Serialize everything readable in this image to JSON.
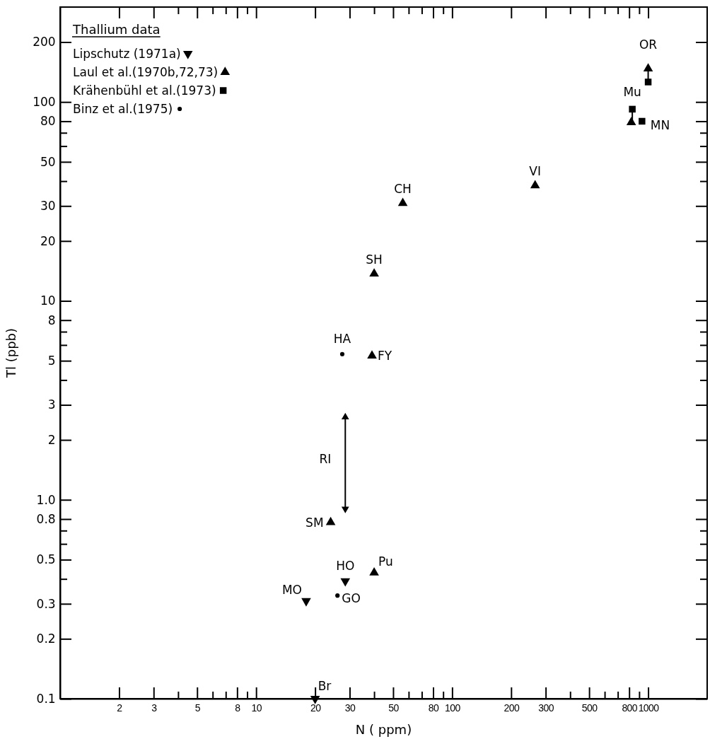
{
  "chart_data": {
    "type": "scatter",
    "xlabel": "N ( ppm)",
    "ylabel": "Tl (ppb)",
    "legend_title": "Thallium data",
    "legend": "top left",
    "log": "xy",
    "grid": false,
    "xlim": [
      1,
      2000
    ],
    "ylim": [
      0.1,
      300
    ],
    "xticks": [
      2,
      3,
      {
        "value": 4,
        "label": null
      },
      5,
      {
        "value": 6,
        "label": null
      },
      {
        "value": 7,
        "label": null
      },
      8,
      {
        "value": 9,
        "label": null
      },
      10,
      20,
      30,
      {
        "value": 40,
        "label": null
      },
      50,
      {
        "value": 60,
        "label": null
      },
      {
        "value": 70,
        "label": null
      },
      80,
      {
        "value": 90,
        "label": null
      },
      100,
      200,
      300,
      {
        "value": 400,
        "label": null
      },
      500,
      {
        "value": 600,
        "label": null
      },
      {
        "value": 700,
        "label": null
      },
      800,
      {
        "value": 900,
        "label": null
      },
      1000
    ],
    "yticks": [
      0.1,
      0.2,
      0.3,
      {
        "value": 0.4,
        "label": null
      },
      0.5,
      {
        "value": 0.6,
        "label": null
      },
      {
        "value": 0.7,
        "label": null
      },
      0.8,
      {
        "value": 1,
        "label": "1.0"
      },
      2,
      3,
      {
        "value": 4,
        "label": null
      },
      5,
      {
        "value": 6,
        "label": null
      },
      {
        "value": 7,
        "label": null
      },
      8,
      10,
      20,
      30,
      {
        "value": 40,
        "label": null
      },
      50,
      {
        "value": 60,
        "label": null
      },
      {
        "value": 70,
        "label": null
      },
      80,
      100,
      200
    ],
    "series": [
      {
        "name": "Lipschutz (1971a)",
        "color": "#000000",
        "marker": "triangle-down",
        "x": [
          28.5,
          18,
          20
        ],
        "values": [
          0.39,
          0.31,
          0.1
        ]
      },
      {
        "name": "Laul et al.(1970b,72,73)",
        "color": "#000000",
        "marker": "triangle",
        "x": [
          1000,
          820,
          265,
          56,
          40,
          39,
          24,
          40
        ],
        "values": [
          147,
          79,
          38,
          31,
          13.7,
          5.3,
          0.77,
          0.43
        ]
      },
      {
        "name": "Krähenbühl et al.(1973)",
        "color": "#000000",
        "marker": "square",
        "x": [
          1000,
          830,
          930
        ],
        "values": [
          126,
          92,
          80
        ]
      },
      {
        "name": "Binz et al.(1975)",
        "color": "#000000",
        "marker": "circle",
        "x": [
          27.5,
          26
        ],
        "values": [
          5.4,
          0.33
        ]
      },
      {
        "type": "line",
        "color": "#000000",
        "line_style": "solid",
        "marker": "triangle",
        "x": [
          28.5,
          28.5
        ],
        "values": [
          0.9,
          2.6
        ]
      },
      {
        "type": "line",
        "color": "#000000",
        "line_style": "solid",
        "marker": "none",
        "x": [
          830,
          830
        ],
        "values": [
          92,
          79
        ]
      },
      {
        "type": "line",
        "color": "#000000",
        "line_style": "solid",
        "marker": "none",
        "x": [
          1000,
          1000
        ],
        "values": [
          126,
          147
        ]
      }
    ],
    "annotations": [
      {
        "text": "OR",
        "x": 1000,
        "y": 147
      },
      {
        "text": "Mu",
        "x": 830,
        "y": 92
      },
      {
        "text": "MN",
        "x": 930,
        "y": 80
      },
      {
        "text": "VI",
        "x": 265,
        "y": 38
      },
      {
        "text": "CH",
        "x": 56,
        "y": 31
      },
      {
        "text": "SH",
        "x": 40,
        "y": 13.7
      },
      {
        "text": "HA",
        "x": 27.5,
        "y": 5.4
      },
      {
        "text": "FY",
        "x": 39,
        "y": 5.3
      },
      {
        "text": "RI",
        "x": 28.5,
        "y": 1.6
      },
      {
        "text": "SM",
        "x": 24,
        "y": 0.77
      },
      {
        "text": "HO",
        "x": 28.5,
        "y": 0.39
      },
      {
        "text": "Pu",
        "x": 40,
        "y": 0.43
      },
      {
        "text": "MO",
        "x": 18,
        "y": 0.31
      },
      {
        "text": "GO",
        "x": 26,
        "y": 0.33
      },
      {
        "text": "Br",
        "x": 20,
        "y": 0.1
      }
    ]
  }
}
